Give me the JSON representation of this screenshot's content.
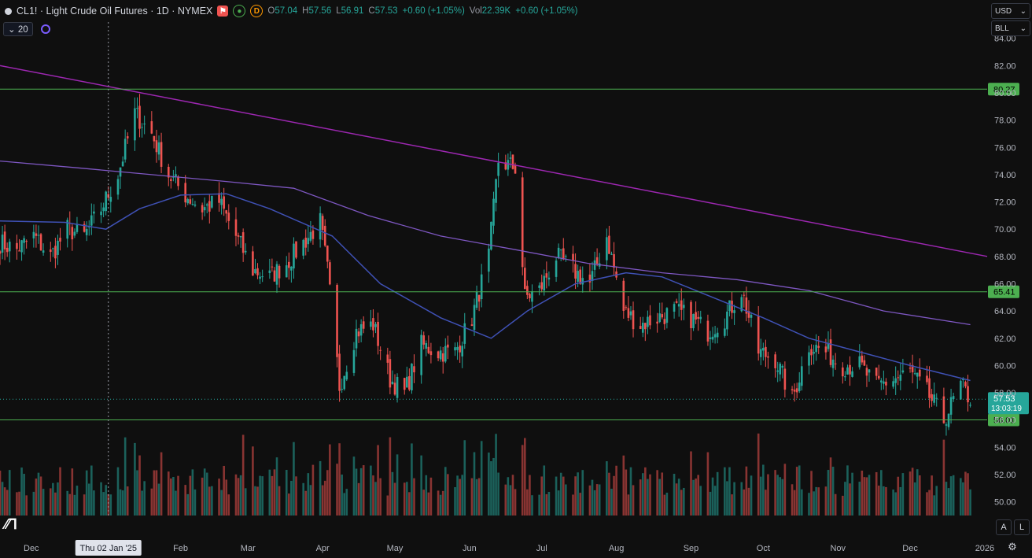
{
  "header": {
    "title": "CL1! · Light Crude Oil Futures · 1D · NYMEX",
    "market_status_letter": "D",
    "ohlc": [
      {
        "label": "O",
        "value": "57.04"
      },
      {
        "label": "H",
        "value": "57.56"
      },
      {
        "label": "L",
        "value": "56.91"
      },
      {
        "label": "C",
        "value": "57.53"
      }
    ],
    "change": "+0.60 (+1.05%)",
    "vol_label": "Vol",
    "vol_value": "22.39K",
    "vol_change": "+0.60 (+1.05%)"
  },
  "indicator": {
    "ma_length": "20"
  },
  "axis": {
    "currency": "USD",
    "unit": "BLL",
    "y_ticks": [
      "84.00",
      "82.00",
      "80.00",
      "78.00",
      "76.00",
      "74.00",
      "72.00",
      "70.00",
      "68.00",
      "66.00",
      "64.00",
      "62.00",
      "60.00",
      "58.00",
      "56.00",
      "54.00",
      "52.00",
      "50.00"
    ],
    "x_ticks": [
      "Dec",
      "Feb",
      "Mar",
      "Apr",
      "May",
      "Jun",
      "Jul",
      "Aug",
      "Sep",
      "Oct",
      "Nov",
      "Dec",
      "2026"
    ],
    "crosshair_date": "Thu 02 Jan '25",
    "auto_label": "A",
    "log_label": "L"
  },
  "levels": [
    {
      "label": "80.27",
      "value": 80.27
    },
    {
      "label": "65.41",
      "value": 65.41
    },
    {
      "label": "56.01",
      "value": 56.01
    }
  ],
  "last_price": {
    "value": "57.53",
    "countdown": "13:03:19"
  },
  "colors": {
    "bg": "#0f0f0f",
    "up": "#26a69a",
    "down": "#ef5350",
    "level": "#4caf50",
    "ma_short": "#3f51b5",
    "ma_mid": "#7e57c2",
    "trend": "#9c27b0"
  },
  "chart_data": {
    "type": "candlestick",
    "ylim": [
      49,
      84.5
    ],
    "x_range": [
      "2024-11-18",
      "2026-01-02"
    ],
    "x_ticks": [
      {
        "label": "Dec",
        "date": "2024-12-01"
      },
      {
        "label": "Feb",
        "date": "2025-02-01"
      },
      {
        "label": "Mar",
        "date": "2025-03-01"
      },
      {
        "label": "Apr",
        "date": "2025-04-01"
      },
      {
        "label": "May",
        "date": "2025-05-01"
      },
      {
        "label": "Jun",
        "date": "2025-06-01"
      },
      {
        "label": "Jul",
        "date": "2025-07-01"
      },
      {
        "label": "Aug",
        "date": "2025-08-01"
      },
      {
        "label": "Sep",
        "date": "2025-09-01"
      },
      {
        "label": "Oct",
        "date": "2025-10-01"
      },
      {
        "label": "Nov",
        "date": "2025-11-01"
      },
      {
        "label": "Dec",
        "date": "2025-12-01"
      },
      {
        "label": "2026",
        "date": "2026-01-01"
      }
    ],
    "crosshair_date": "2025-01-02",
    "close_path": [
      [
        "2024-11-18",
        69.0
      ],
      [
        "2024-11-25",
        68.5
      ],
      [
        "2024-12-02",
        69.5
      ],
      [
        "2024-12-09",
        68.0
      ],
      [
        "2024-12-16",
        70.0
      ],
      [
        "2024-12-23",
        69.5
      ],
      [
        "2024-12-30",
        71.5
      ],
      [
        "2025-01-06",
        74.0
      ],
      [
        "2025-01-13",
        78.5
      ],
      [
        "2025-01-20",
        77.0
      ],
      [
        "2025-01-27",
        74.0
      ],
      [
        "2025-02-03",
        72.5
      ],
      [
        "2025-02-10",
        71.5
      ],
      [
        "2025-02-17",
        72.0
      ],
      [
        "2025-02-24",
        69.5
      ],
      [
        "2025-03-03",
        67.0
      ],
      [
        "2025-03-10",
        66.5
      ],
      [
        "2025-03-17",
        67.5
      ],
      [
        "2025-03-24",
        69.0
      ],
      [
        "2025-03-31",
        70.5
      ],
      [
        "2025-04-03",
        67.0
      ],
      [
        "2025-04-08",
        58.5
      ],
      [
        "2025-04-15",
        62.5
      ],
      [
        "2025-04-22",
        63.0
      ],
      [
        "2025-04-29",
        59.0
      ],
      [
        "2025-05-05",
        58.0
      ],
      [
        "2025-05-12",
        61.5
      ],
      [
        "2025-05-19",
        61.0
      ],
      [
        "2025-05-26",
        61.0
      ],
      [
        "2025-06-02",
        63.5
      ],
      [
        "2025-06-09",
        68.0
      ],
      [
        "2025-06-13",
        75.0
      ],
      [
        "2025-06-20",
        74.5
      ],
      [
        "2025-06-24",
        65.0
      ],
      [
        "2025-06-30",
        65.5
      ],
      [
        "2025-07-07",
        68.0
      ],
      [
        "2025-07-14",
        67.0
      ],
      [
        "2025-07-21",
        66.0
      ],
      [
        "2025-07-28",
        69.5
      ],
      [
        "2025-08-04",
        64.0
      ],
      [
        "2025-08-11",
        63.0
      ],
      [
        "2025-08-18",
        63.5
      ],
      [
        "2025-08-25",
        64.0
      ],
      [
        "2025-09-01",
        63.5
      ],
      [
        "2025-09-08",
        62.5
      ],
      [
        "2025-09-15",
        63.5
      ],
      [
        "2025-09-22",
        65.5
      ],
      [
        "2025-09-29",
        61.0
      ],
      [
        "2025-10-06",
        60.5
      ],
      [
        "2025-10-13",
        57.5
      ],
      [
        "2025-10-20",
        61.5
      ],
      [
        "2025-10-27",
        61.0
      ],
      [
        "2025-11-03",
        60.0
      ],
      [
        "2025-11-10",
        60.0
      ],
      [
        "2025-11-17",
        58.5
      ],
      [
        "2025-11-24",
        59.0
      ],
      [
        "2025-12-01",
        59.5
      ],
      [
        "2025-12-08",
        58.0
      ],
      [
        "2025-12-15",
        56.0
      ],
      [
        "2025-12-22",
        58.5
      ],
      [
        "2025-12-26",
        57.53
      ]
    ],
    "ma_short": [
      [
        "2024-11-18",
        70.6
      ],
      [
        "2024-12-15",
        70.5
      ],
      [
        "2025-01-01",
        70.0
      ],
      [
        "2025-01-15",
        71.5
      ],
      [
        "2025-02-01",
        72.5
      ],
      [
        "2025-02-20",
        72.6
      ],
      [
        "2025-03-10",
        71.5
      ],
      [
        "2025-04-05",
        69.5
      ],
      [
        "2025-04-25",
        66.0
      ],
      [
        "2025-05-20",
        63.5
      ],
      [
        "2025-06-10",
        62.0
      ],
      [
        "2025-06-25",
        64.0
      ],
      [
        "2025-07-15",
        66.0
      ],
      [
        "2025-08-05",
        66.8
      ],
      [
        "2025-08-20",
        66.5
      ],
      [
        "2025-09-10",
        65.0
      ],
      [
        "2025-10-01",
        63.5
      ],
      [
        "2025-10-20",
        62.0
      ],
      [
        "2025-11-10",
        61.0
      ],
      [
        "2025-12-01",
        60.0
      ],
      [
        "2025-12-26",
        58.9
      ]
    ],
    "ma_mid": [
      [
        "2024-11-18",
        75.0
      ],
      [
        "2024-12-20",
        74.5
      ],
      [
        "2025-01-20",
        74.0
      ],
      [
        "2025-02-20",
        73.5
      ],
      [
        "2025-03-20",
        73.0
      ],
      [
        "2025-04-20",
        71.0
      ],
      [
        "2025-05-20",
        69.5
      ],
      [
        "2025-06-20",
        68.5
      ],
      [
        "2025-07-20",
        67.5
      ],
      [
        "2025-08-20",
        66.8
      ],
      [
        "2025-09-20",
        66.3
      ],
      [
        "2025-10-20",
        65.5
      ],
      [
        "2025-11-20",
        64.0
      ],
      [
        "2025-12-26",
        63.0
      ]
    ],
    "trendline": [
      [
        "2024-11-18",
        82.0
      ],
      [
        "2026-01-02",
        68.0
      ]
    ],
    "volume_max_label": "56"
  }
}
